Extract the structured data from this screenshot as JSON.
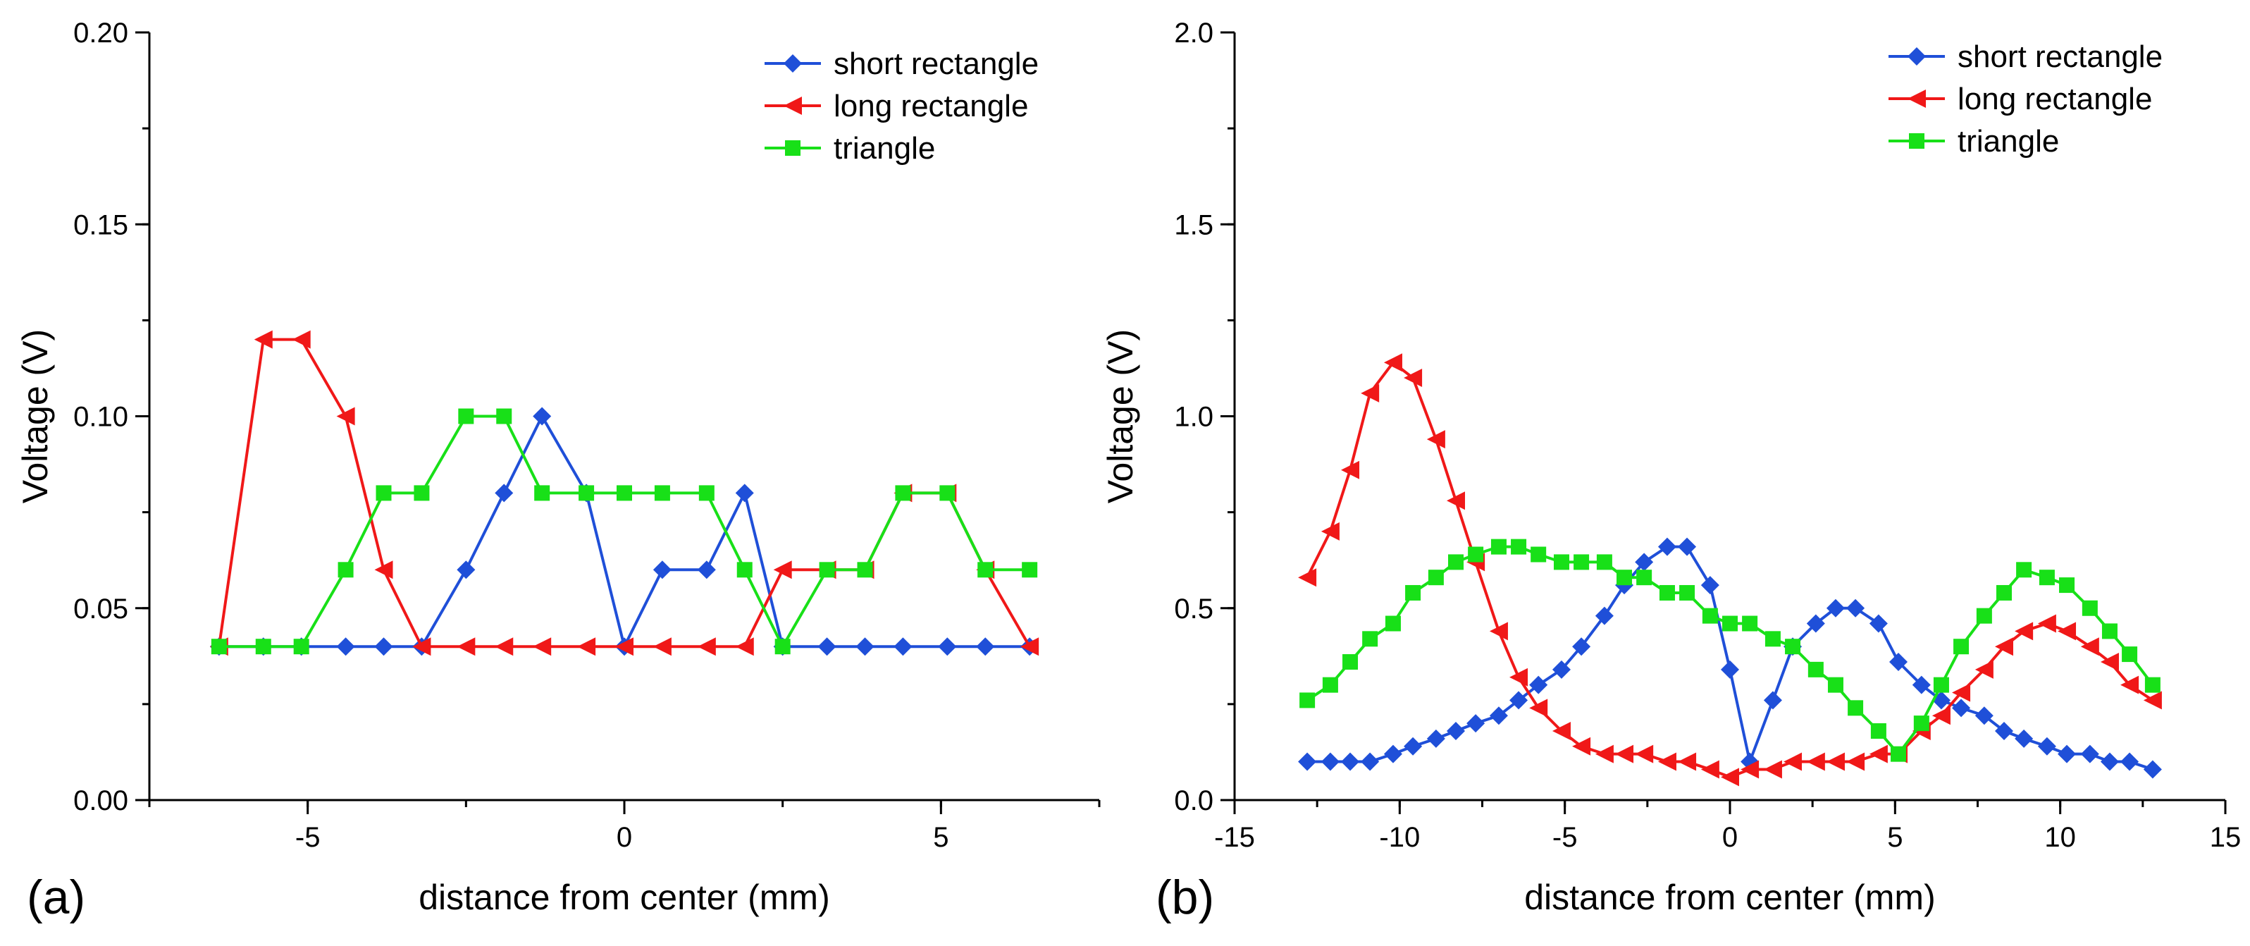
{
  "colors": {
    "short_rectangle": "#1f4fd8",
    "long_rectangle": "#f01818",
    "triangle": "#18e018",
    "axis": "#000000"
  },
  "chart_data": [
    {
      "type": "line",
      "panel_label": "(a)",
      "xlabel": "distance from center (mm)",
      "ylabel": "Voltage (V)",
      "xlim": [
        -7.5,
        7.5
      ],
      "ylim": [
        0,
        0.2
      ],
      "xticks": [
        -5,
        0,
        5
      ],
      "xtick_labels": [
        "-5",
        "0",
        "5"
      ],
      "yticks": [
        0,
        0.05,
        0.1,
        0.15,
        0.2
      ],
      "ytick_labels": [
        "0.00",
        "0.05",
        "0.10",
        "0.15",
        "0.20"
      ],
      "grid": false,
      "legend_position": "top-right",
      "series": [
        {
          "name": "short rectangle",
          "marker": "diamond",
          "color_key": "short_rectangle",
          "x": [
            -6.4,
            -5.7,
            -5.1,
            -4.4,
            -3.8,
            -3.2,
            -2.5,
            -1.9,
            -1.3,
            -0.6,
            0,
            0.6,
            1.3,
            1.9,
            2.5,
            3.2,
            3.8,
            4.4,
            5.1,
            5.7,
            6.4
          ],
          "y": [
            0.04,
            0.04,
            0.04,
            0.04,
            0.04,
            0.04,
            0.06,
            0.08,
            0.1,
            0.08,
            0.04,
            0.06,
            0.06,
            0.08,
            0.04,
            0.04,
            0.04,
            0.04,
            0.04,
            0.04,
            0.04
          ]
        },
        {
          "name": "long rectangle",
          "marker": "triangle-left",
          "color_key": "long_rectangle",
          "x": [
            -6.4,
            -5.7,
            -5.1,
            -4.4,
            -3.8,
            -3.2,
            -2.5,
            -1.9,
            -1.3,
            -0.6,
            0,
            0.6,
            1.3,
            1.9,
            2.5,
            3.2,
            3.8,
            4.4,
            5.1,
            5.7,
            6.4
          ],
          "y": [
            0.04,
            0.12,
            0.12,
            0.1,
            0.06,
            0.04,
            0.04,
            0.04,
            0.04,
            0.04,
            0.04,
            0.04,
            0.04,
            0.04,
            0.06,
            0.06,
            0.06,
            0.08,
            0.08,
            0.06,
            0.04
          ]
        },
        {
          "name": "triangle",
          "marker": "square",
          "color_key": "triangle",
          "x": [
            -6.4,
            -5.7,
            -5.1,
            -4.4,
            -3.8,
            -3.2,
            -2.5,
            -1.9,
            -1.3,
            -0.6,
            0,
            0.6,
            1.3,
            1.9,
            2.5,
            3.2,
            3.8,
            4.4,
            5.1,
            5.7,
            6.4
          ],
          "y": [
            0.04,
            0.04,
            0.04,
            0.06,
            0.08,
            0.08,
            0.1,
            0.1,
            0.08,
            0.08,
            0.08,
            0.08,
            0.08,
            0.06,
            0.04,
            0.06,
            0.06,
            0.08,
            0.08,
            0.06,
            0.06
          ]
        }
      ]
    },
    {
      "type": "line",
      "panel_label": "(b)",
      "xlabel": "distance from center (mm)",
      "ylabel": "Voltage (V)",
      "xlim": [
        -15,
        15
      ],
      "ylim": [
        0,
        2.0
      ],
      "xticks": [
        -15,
        -10,
        -5,
        0,
        5,
        10,
        15
      ],
      "xtick_labels": [
        "-15",
        "-10",
        "-5",
        "0",
        "5",
        "10",
        "15"
      ],
      "yticks": [
        0,
        0.5,
        1.0,
        1.5,
        2.0
      ],
      "ytick_labels": [
        "0.0",
        "0.5",
        "1.0",
        "1.5",
        "2.0"
      ],
      "grid": false,
      "legend_position": "top-right",
      "series": [
        {
          "name": "short rectangle",
          "marker": "diamond",
          "color_key": "short_rectangle",
          "x": [
            -12.8,
            -12.1,
            -11.5,
            -10.9,
            -10.2,
            -9.6,
            -8.9,
            -8.3,
            -7.7,
            -7.0,
            -6.4,
            -5.8,
            -5.1,
            -4.5,
            -3.8,
            -3.2,
            -2.6,
            -1.9,
            -1.3,
            -0.6,
            0,
            0.6,
            1.3,
            1.9,
            2.6,
            3.2,
            3.8,
            4.5,
            5.1,
            5.8,
            6.4,
            7.0,
            7.7,
            8.3,
            8.9,
            9.6,
            10.2,
            10.9,
            11.5,
            12.1,
            12.8
          ],
          "y": [
            0.1,
            0.1,
            0.1,
            0.1,
            0.12,
            0.14,
            0.16,
            0.18,
            0.2,
            0.22,
            0.26,
            0.3,
            0.34,
            0.4,
            0.48,
            0.56,
            0.62,
            0.66,
            0.66,
            0.56,
            0.34,
            0.1,
            0.26,
            0.4,
            0.46,
            0.5,
            0.5,
            0.46,
            0.36,
            0.3,
            0.26,
            0.24,
            0.22,
            0.18,
            0.16,
            0.14,
            0.12,
            0.12,
            0.1,
            0.1,
            0.08
          ]
        },
        {
          "name": "long rectangle",
          "marker": "triangle-left",
          "color_key": "long_rectangle",
          "x": [
            -12.8,
            -12.1,
            -11.5,
            -10.9,
            -10.2,
            -9.6,
            -8.9,
            -8.3,
            -7.7,
            -7.0,
            -6.4,
            -5.8,
            -5.1,
            -4.5,
            -3.8,
            -3.2,
            -2.6,
            -1.9,
            -1.3,
            -0.6,
            0,
            0.6,
            1.3,
            1.9,
            2.6,
            3.2,
            3.8,
            4.5,
            5.1,
            5.8,
            6.4,
            7.0,
            7.7,
            8.3,
            8.9,
            9.6,
            10.2,
            10.9,
            11.5,
            12.1,
            12.8
          ],
          "y": [
            0.58,
            0.7,
            0.86,
            1.06,
            1.14,
            1.1,
            0.94,
            0.78,
            0.62,
            0.44,
            0.32,
            0.24,
            0.18,
            0.14,
            0.12,
            0.12,
            0.12,
            0.1,
            0.1,
            0.08,
            0.06,
            0.08,
            0.08,
            0.1,
            0.1,
            0.1,
            0.1,
            0.12,
            0.12,
            0.18,
            0.22,
            0.28,
            0.34,
            0.4,
            0.44,
            0.46,
            0.44,
            0.4,
            0.36,
            0.3,
            0.26
          ]
        },
        {
          "name": "triangle",
          "marker": "square",
          "color_key": "triangle",
          "x": [
            -12.8,
            -12.1,
            -11.5,
            -10.9,
            -10.2,
            -9.6,
            -8.9,
            -8.3,
            -7.7,
            -7.0,
            -6.4,
            -5.8,
            -5.1,
            -4.5,
            -3.8,
            -3.2,
            -2.6,
            -1.9,
            -1.3,
            -0.6,
            0,
            0.6,
            1.3,
            1.9,
            2.6,
            3.2,
            3.8,
            4.5,
            5.1,
            5.8,
            6.4,
            7.0,
            7.7,
            8.3,
            8.9,
            9.6,
            10.2,
            10.9,
            11.5,
            12.1,
            12.8
          ],
          "y": [
            0.26,
            0.3,
            0.36,
            0.42,
            0.46,
            0.54,
            0.58,
            0.62,
            0.64,
            0.66,
            0.66,
            0.64,
            0.62,
            0.62,
            0.62,
            0.58,
            0.58,
            0.54,
            0.54,
            0.48,
            0.46,
            0.46,
            0.42,
            0.4,
            0.34,
            0.3,
            0.24,
            0.18,
            0.12,
            0.2,
            0.3,
            0.4,
            0.48,
            0.54,
            0.6,
            0.58,
            0.56,
            0.5,
            0.44,
            0.38,
            0.3
          ]
        }
      ]
    }
  ]
}
